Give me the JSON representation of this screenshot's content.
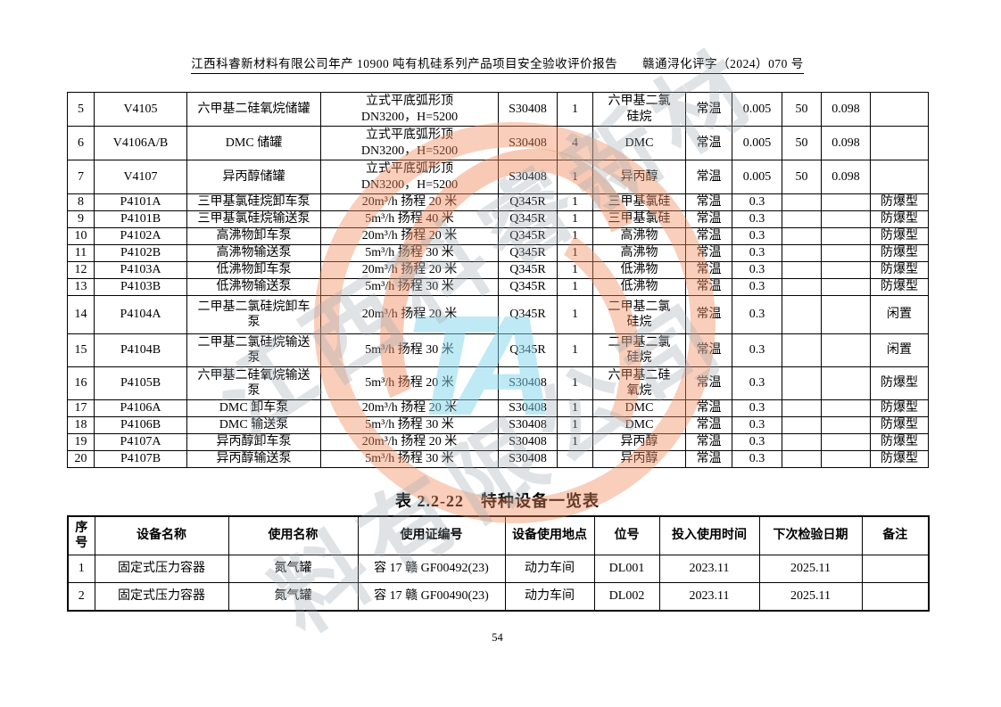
{
  "page": {
    "header": "江西科睿新材料有限公司年产 10900 吨有机硅系列产品项目安全验收评价报告　　赣通浔化评字（2024）070 号",
    "page_number": "54"
  },
  "equipment_table": {
    "rows": [
      [
        "5",
        "V4105",
        "六甲基二硅氧烷储罐",
        "立式平底弧形顶\nDN3200，H=5200",
        "S30408",
        "1",
        "六甲基二氯\n硅烷",
        "常温",
        "0.005",
        "50",
        "0.098",
        ""
      ],
      [
        "6",
        "V4106A/B",
        "DMC 储罐",
        "立式平底弧形顶\nDN3200，H=5200",
        "S30408",
        "4",
        "DMC",
        "常温",
        "0.005",
        "50",
        "0.098",
        ""
      ],
      [
        "7",
        "V4107",
        "异丙醇储罐",
        "立式平底弧形顶\nDN3200，H=5200",
        "S30408",
        "1",
        "异丙醇",
        "常温",
        "0.005",
        "50",
        "0.098",
        ""
      ],
      [
        "8",
        "P4101A",
        "三甲基氯硅烷卸车泵",
        "20m³/h 扬程 20 米",
        "Q345R",
        "1",
        "三甲基氯硅",
        "常温",
        "0.3",
        "",
        "",
        "防爆型"
      ],
      [
        "9",
        "P4101B",
        "三甲基氯硅烷输送泵",
        "5m³/h 扬程 40 米",
        "Q345R",
        "1",
        "三甲基氯硅",
        "常温",
        "0.3",
        "",
        "",
        "防爆型"
      ],
      [
        "10",
        "P4102A",
        "高沸物卸车泵",
        "20m³/h 扬程 20 米",
        "Q345R",
        "1",
        "高沸物",
        "常温",
        "0.3",
        "",
        "",
        "防爆型"
      ],
      [
        "11",
        "P4102B",
        "高沸物输送泵",
        "5m³/h 扬程 30 米",
        "Q345R",
        "1",
        "高沸物",
        "常温",
        "0.3",
        "",
        "",
        "防爆型"
      ],
      [
        "12",
        "P4103A",
        "低沸物卸车泵",
        "20m³/h 扬程 20 米",
        "Q345R",
        "1",
        "低沸物",
        "常温",
        "0.3",
        "",
        "",
        "防爆型"
      ],
      [
        "13",
        "P4103B",
        "低沸物输送泵",
        "5m³/h 扬程 30 米",
        "Q345R",
        "1",
        "低沸物",
        "常温",
        "0.3",
        "",
        "",
        "防爆型"
      ],
      [
        "14",
        "P4104A",
        "二甲基二氯硅烷卸车\n泵",
        "20m³/h 扬程 20 米",
        "Q345R",
        "1",
        "二甲基二氯\n硅烷",
        "常温",
        "0.3",
        "",
        "",
        "闲置"
      ],
      [
        "15",
        "P4104B",
        "二甲基二氯硅烷输送\n泵",
        "5m³/h 扬程 30 米",
        "Q345R",
        "1",
        "二甲基二氯\n硅烷",
        "常温",
        "0.3",
        "",
        "",
        "闲置"
      ],
      [
        "16",
        "P4105B",
        "六甲基二硅氧烷输送\n泵",
        "5m³/h 扬程 20 米",
        "S30408",
        "1",
        "六甲基二硅\n氧烷",
        "常温",
        "0.3",
        "",
        "",
        "防爆型"
      ],
      [
        "17",
        "P4106A",
        "DMC 卸车泵",
        "20m³/h 扬程 20 米",
        "S30408",
        "1",
        "DMC",
        "常温",
        "0.3",
        "",
        "",
        "防爆型"
      ],
      [
        "18",
        "P4106B",
        "DMC 输送泵",
        "5m³/h 扬程 30 米",
        "S30408",
        "1",
        "DMC",
        "常温",
        "0.3",
        "",
        "",
        "防爆型"
      ],
      [
        "19",
        "P4107A",
        "异丙醇卸车泵",
        "20m³/h 扬程 20 米",
        "S30408",
        "1",
        "异丙醇",
        "常温",
        "0.3",
        "",
        "",
        "防爆型"
      ],
      [
        "20",
        "P4107B",
        "异丙醇输送泵",
        "5m³/h 扬程 30 米",
        "S30408",
        "",
        "异丙醇",
        "常温",
        "0.3",
        "",
        "",
        "防爆型"
      ]
    ]
  },
  "special_table": {
    "title": "表 2.2-22　特种设备一览表",
    "headers": [
      "序\n号",
      "设备名称",
      "使用名称",
      "使用证编号",
      "设备使用地点",
      "位号",
      "投入使用时间",
      "下次检验日期",
      "备注"
    ],
    "rows": [
      [
        "1",
        "固定式压力容器",
        "氮气罐",
        "容 17 赣 GF00492(23)",
        "动力车间",
        "DL001",
        "2023.11",
        "2025.11",
        ""
      ],
      [
        "2",
        "固定式压力容器",
        "氮气罐",
        "容 17 赣 GF00490(23)",
        "动力车间",
        "DL002",
        "2023.11",
        "2025.11",
        ""
      ]
    ]
  },
  "watermark": {
    "seal_color": "#F08A5E",
    "accent_color": "#80D5EC",
    "lattice_color": "#A0A7AE",
    "blue_letters": "TA",
    "lattice_text_1": "江西科睿新材",
    "lattice_text_2": "料有限公司"
  }
}
